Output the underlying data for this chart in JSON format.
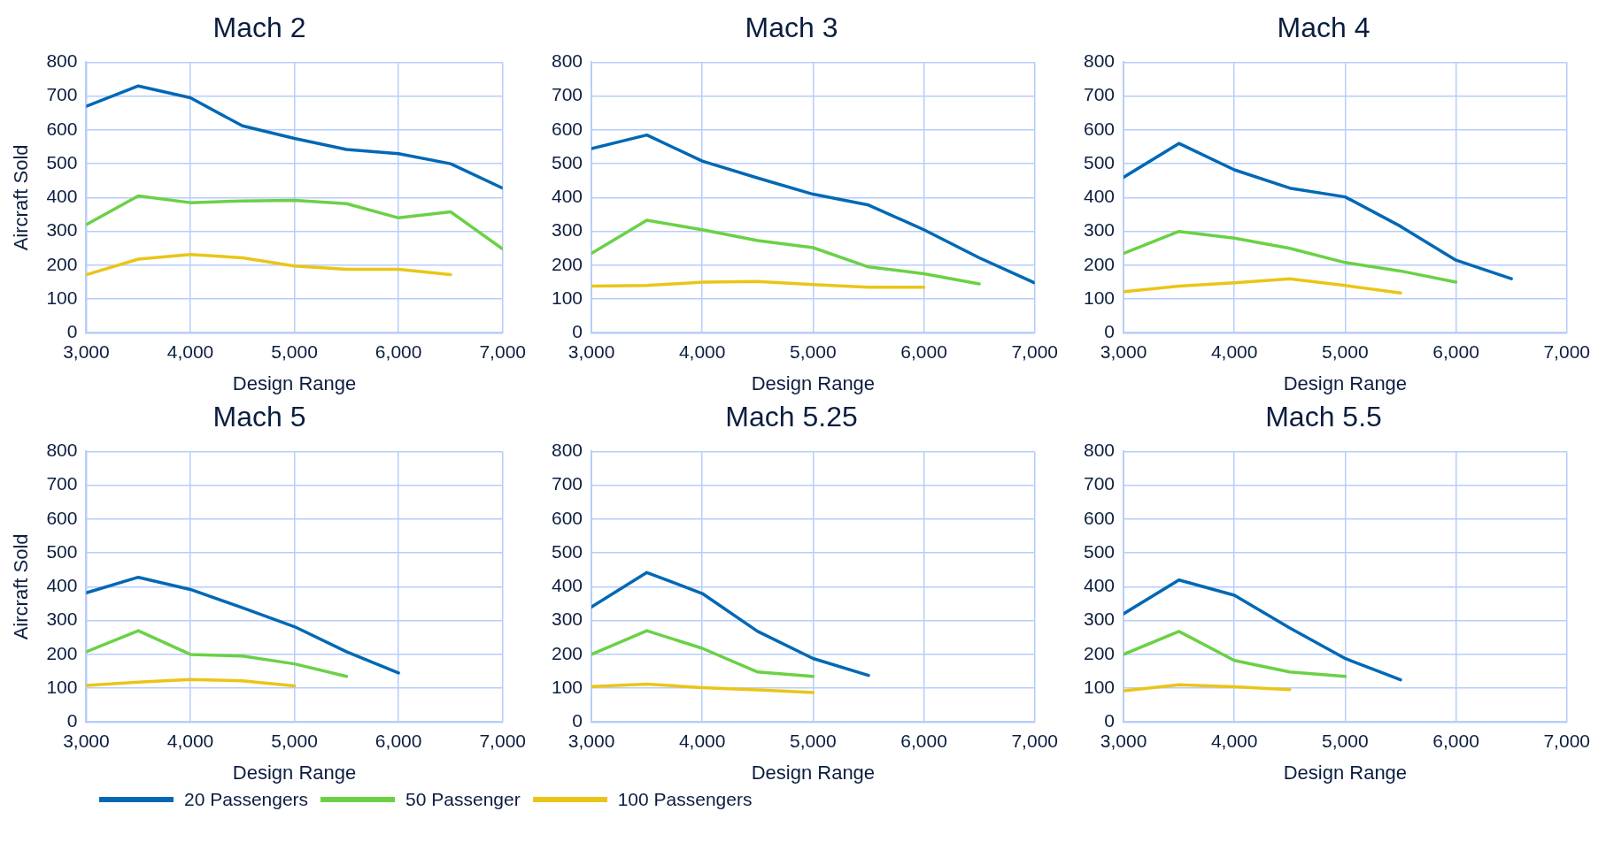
{
  "chart_data": [
    {
      "type": "line",
      "title": "Mach 2",
      "xlabel": "Design Range",
      "ylabel": "Aircraft Sold",
      "x": [
        3000,
        3500,
        4000,
        4500,
        5000,
        5500,
        6000,
        6500,
        7000
      ],
      "xlim": [
        3000,
        7000
      ],
      "xticks": [
        {
          "value": 3000,
          "label": "3,000"
        },
        {
          "value": 4000,
          "label": "4,000"
        },
        {
          "value": 5000,
          "label": "5,000"
        },
        {
          "value": 6000,
          "label": "6,000"
        },
        {
          "value": 7000,
          "label": "7,000"
        }
      ],
      "ylim": [
        0,
        800
      ],
      "yticks": [
        0,
        100,
        200,
        300,
        400,
        500,
        600,
        700,
        800
      ],
      "grid": true,
      "marker": "none",
      "line_style": "solid",
      "series": [
        {
          "color": "#0068b5",
          "values": [
            670,
            730,
            695,
            612,
            575,
            542,
            530,
            500,
            428
          ]
        },
        {
          "color": "#6ad146",
          "values": [
            320,
            405,
            385,
            390,
            392,
            382,
            340,
            358,
            248
          ]
        },
        {
          "color": "#eac518",
          "values": [
            172,
            218,
            232,
            222,
            198,
            188,
            188,
            172,
            null
          ]
        }
      ]
    },
    {
      "type": "line",
      "title": "Mach 3",
      "xlabel": "Design Range",
      "x": [
        3000,
        3500,
        4000,
        4500,
        5000,
        5500,
        6000,
        6500,
        7000
      ],
      "xlim": [
        3000,
        7000
      ],
      "xticks": [
        {
          "value": 3000,
          "label": "3,000"
        },
        {
          "value": 4000,
          "label": "4,000"
        },
        {
          "value": 5000,
          "label": "5,000"
        },
        {
          "value": 6000,
          "label": "6,000"
        },
        {
          "value": 7000,
          "label": "7,000"
        }
      ],
      "ylim": [
        0,
        800
      ],
      "yticks": [
        0,
        100,
        200,
        300,
        400,
        500,
        600,
        700,
        800
      ],
      "grid": true,
      "marker": "none",
      "line_style": "solid",
      "series": [
        {
          "color": "#0068b5",
          "values": [
            545,
            585,
            508,
            458,
            410,
            378,
            305,
            222,
            148
          ]
        },
        {
          "color": "#6ad146",
          "values": [
            235,
            333,
            305,
            273,
            252,
            195,
            175,
            145,
            null
          ]
        },
        {
          "color": "#eac518",
          "values": [
            138,
            140,
            150,
            152,
            143,
            135,
            135,
            null,
            null
          ]
        }
      ]
    },
    {
      "type": "line",
      "title": "Mach 4",
      "xlabel": "Design Range",
      "x": [
        3000,
        3500,
        4000,
        4500,
        5000,
        5500,
        6000,
        6500
      ],
      "xlim": [
        3000,
        7000
      ],
      "xticks": [
        {
          "value": 3000,
          "label": "3,000"
        },
        {
          "value": 4000,
          "label": "4,000"
        },
        {
          "value": 5000,
          "label": "5,000"
        },
        {
          "value": 6000,
          "label": "6,000"
        },
        {
          "value": 7000,
          "label": "7,000"
        }
      ],
      "ylim": [
        0,
        800
      ],
      "yticks": [
        0,
        100,
        200,
        300,
        400,
        500,
        600,
        700,
        800
      ],
      "grid": true,
      "marker": "none",
      "line_style": "solid",
      "series": [
        {
          "color": "#0068b5",
          "values": [
            460,
            560,
            482,
            428,
            402,
            315,
            215,
            160
          ]
        },
        {
          "color": "#6ad146",
          "values": [
            235,
            300,
            280,
            250,
            208,
            183,
            150,
            null
          ]
        },
        {
          "color": "#eac518",
          "values": [
            122,
            138,
            148,
            160,
            140,
            118,
            null,
            null
          ]
        }
      ]
    },
    {
      "type": "line",
      "title": "Mach 5",
      "xlabel": "Design Range",
      "ylabel": "Aircraft Sold",
      "x": [
        3000,
        3500,
        4000,
        4500,
        5000,
        5500,
        6000
      ],
      "xlim": [
        3000,
        7000
      ],
      "xticks": [
        {
          "value": 3000,
          "label": "3,000"
        },
        {
          "value": 4000,
          "label": "4,000"
        },
        {
          "value": 5000,
          "label": "5,000"
        },
        {
          "value": 6000,
          "label": "6,000"
        },
        {
          "value": 7000,
          "label": "7,000"
        }
      ],
      "ylim": [
        0,
        800
      ],
      "yticks": [
        0,
        100,
        200,
        300,
        400,
        500,
        600,
        700,
        800
      ],
      "grid": true,
      "marker": "none",
      "line_style": "solid",
      "series": [
        {
          "color": "#0068b5",
          "values": [
            382,
            428,
            392,
            338,
            282,
            208,
            145
          ]
        },
        {
          "color": "#6ad146",
          "values": [
            208,
            270,
            200,
            195,
            172,
            135,
            null
          ]
        },
        {
          "color": "#eac518",
          "values": [
            108,
            118,
            126,
            122,
            107,
            null,
            null
          ]
        }
      ]
    },
    {
      "type": "line",
      "title": "Mach 5.25",
      "xlabel": "Design Range",
      "x": [
        3000,
        3500,
        4000,
        4500,
        5000,
        5500
      ],
      "xlim": [
        3000,
        7000
      ],
      "xticks": [
        {
          "value": 3000,
          "label": "3,000"
        },
        {
          "value": 4000,
          "label": "4,000"
        },
        {
          "value": 5000,
          "label": "5,000"
        },
        {
          "value": 6000,
          "label": "6,000"
        },
        {
          "value": 7000,
          "label": "7,000"
        }
      ],
      "ylim": [
        0,
        800
      ],
      "yticks": [
        0,
        100,
        200,
        300,
        400,
        500,
        600,
        700,
        800
      ],
      "grid": true,
      "marker": "none",
      "line_style": "solid",
      "legend": "bottom",
      "series": [
        {
          "name": "20 Passengers",
          "color": "#0068b5",
          "values": [
            340,
            442,
            380,
            268,
            188,
            138
          ]
        },
        {
          "name": "50 Passenger",
          "color": "#6ad146",
          "values": [
            200,
            270,
            218,
            148,
            135,
            null
          ]
        },
        {
          "name": "100 Passengers",
          "color": "#eac518",
          "values": [
            105,
            112,
            102,
            95,
            87,
            null
          ]
        }
      ]
    },
    {
      "type": "line",
      "title": "Mach 5.5",
      "xlabel": "Design Range",
      "x": [
        3000,
        3500,
        4000,
        4500,
        5000,
        5500
      ],
      "xlim": [
        3000,
        7000
      ],
      "xticks": [
        {
          "value": 3000,
          "label": "3,000"
        },
        {
          "value": 4000,
          "label": "4,000"
        },
        {
          "value": 5000,
          "label": "5,000"
        },
        {
          "value": 6000,
          "label": "6,000"
        },
        {
          "value": 7000,
          "label": "7,000"
        }
      ],
      "ylim": [
        0,
        800
      ],
      "yticks": [
        0,
        100,
        200,
        300,
        400,
        500,
        600,
        700,
        800
      ],
      "grid": true,
      "marker": "none",
      "line_style": "solid",
      "series": [
        {
          "color": "#0068b5",
          "values": [
            320,
            420,
            375,
            278,
            188,
            125
          ]
        },
        {
          "color": "#6ad146",
          "values": [
            200,
            268,
            182,
            148,
            135,
            null
          ]
        },
        {
          "color": "#eac518",
          "values": [
            92,
            110,
            104,
            96,
            null,
            null
          ]
        }
      ]
    }
  ]
}
